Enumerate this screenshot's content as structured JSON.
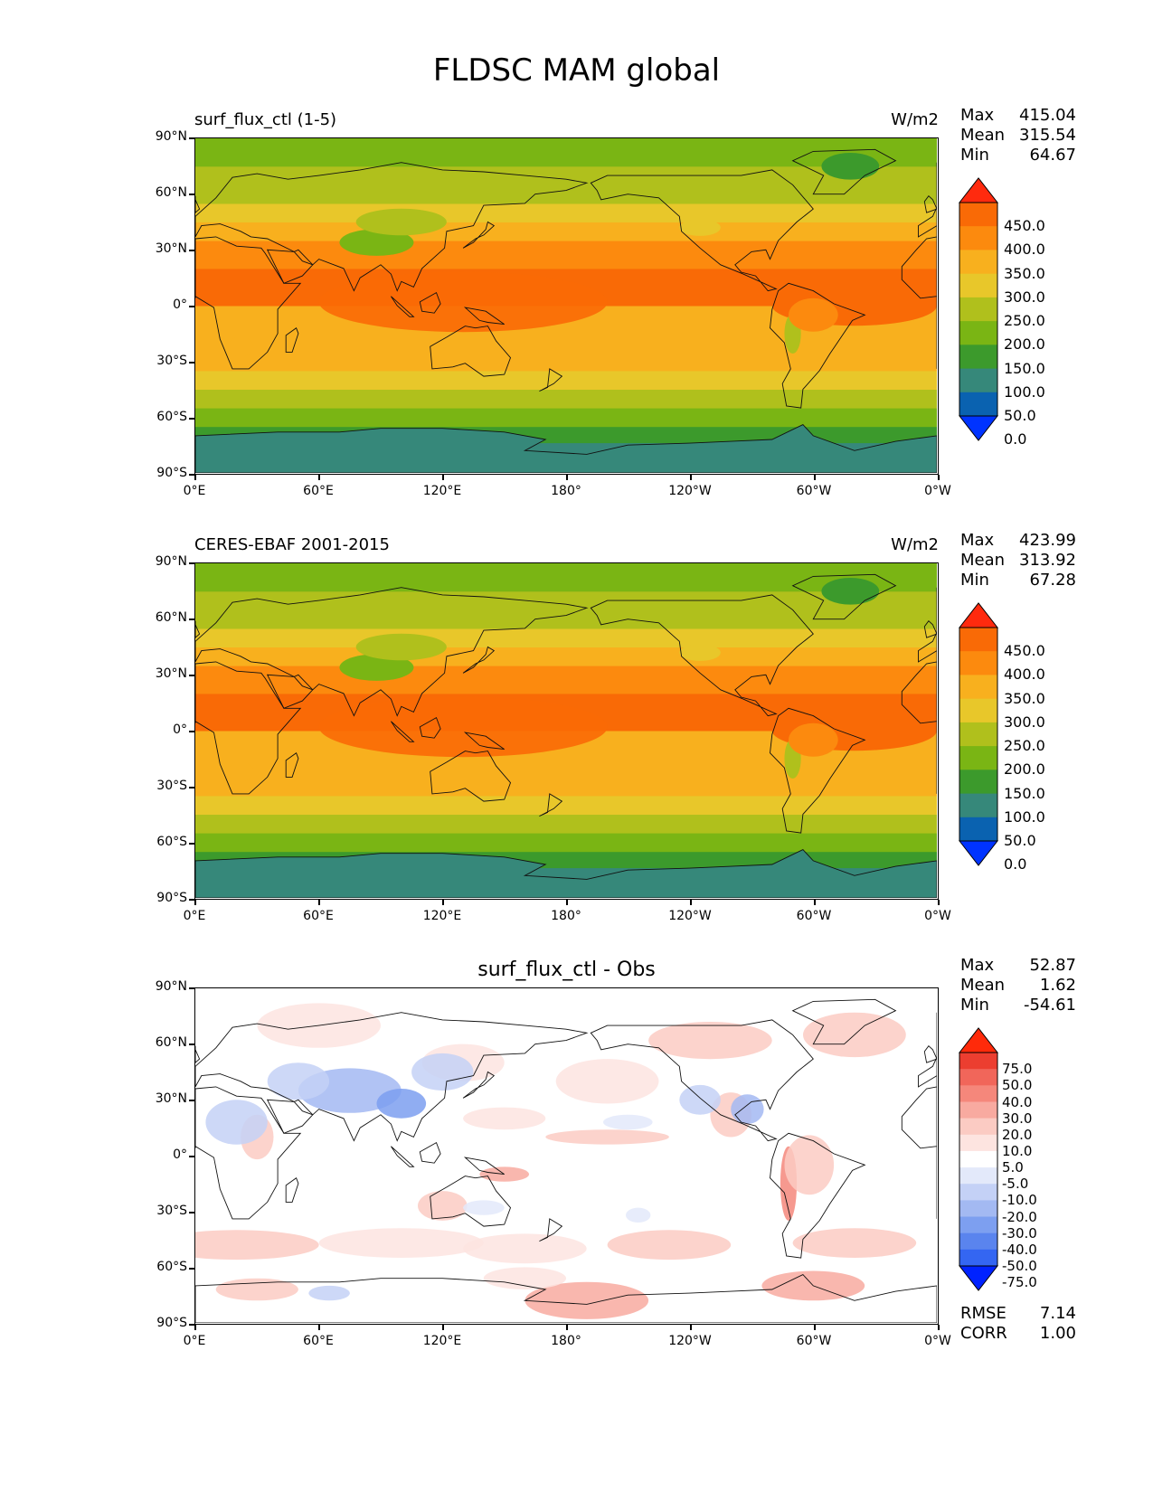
{
  "figure_title": "FLDSC MAM global",
  "x_ticks": [
    "0°E",
    "60°E",
    "120°E",
    "180°",
    "120°W",
    "60°W",
    "0°W"
  ],
  "y_ticks": [
    "90°N",
    "60°N",
    "30°N",
    "0°",
    "30°S",
    "60°S",
    "90°S"
  ],
  "panels": [
    {
      "title": "surf_flux_ctl (1-5)",
      "units": "W/m2",
      "stats": {
        "max_label": "Max",
        "max": "415.04",
        "mean_label": "Mean",
        "mean": "315.54",
        "min_label": "Min",
        "min": "64.67"
      },
      "colorbar_levels": [
        "450.0",
        "400.0",
        "350.0",
        "300.0",
        "250.0",
        "200.0",
        "150.0",
        "100.0",
        "50.0",
        "0.0"
      ]
    },
    {
      "title": "CERES-EBAF 2001-2015",
      "units": "W/m2",
      "stats": {
        "max_label": "Max",
        "max": "423.99",
        "mean_label": "Mean",
        "mean": "313.92",
        "min_label": "Min",
        "min": "67.28"
      },
      "colorbar_levels": [
        "450.0",
        "400.0",
        "350.0",
        "300.0",
        "250.0",
        "200.0",
        "150.0",
        "100.0",
        "50.0",
        "0.0"
      ]
    },
    {
      "title": "surf_flux_ctl - Obs",
      "stats": {
        "max_label": "Max",
        "max": "52.87",
        "mean_label": "Mean",
        "mean": "1.62",
        "min_label": "Min",
        "min": "-54.61"
      },
      "colorbar_levels": [
        "75.0",
        "50.0",
        "40.0",
        "30.0",
        "20.0",
        "10.0",
        "5.0",
        "-5.0",
        "-10.0",
        "-20.0",
        "-30.0",
        "-40.0",
        "-50.0",
        "-75.0"
      ],
      "metrics": {
        "rmse_label": "RMSE",
        "rmse": "7.14",
        "corr_label": "CORR",
        "corr": "1.00"
      }
    }
  ],
  "colors": {
    "flux_scale": [
      "#0033ff",
      "#0a62b0",
      "#36887a",
      "#3c9a2c",
      "#7ab514",
      "#b0c01c",
      "#e8c72a",
      "#f8b01e",
      "#fc8a0e",
      "#f96a06",
      "#ff2a0e"
    ],
    "diff_scale": [
      "#0022ff",
      "#3466f2",
      "#5a84ee",
      "#7d9ff0",
      "#a3b9f2",
      "#c4d1f6",
      "#e3e9fa",
      "#ffffff",
      "#fde4e0",
      "#fbcbc3",
      "#f8aaa0",
      "#f5877b",
      "#f1665a",
      "#ec3e30",
      "#ff2a0a"
    ]
  },
  "chart_data": [
    {
      "type": "heatmap",
      "title": "surf_flux_ctl (1-5)",
      "variable": "FLDSC",
      "season": "MAM",
      "units": "W/m2",
      "xlim": [
        0,
        360
      ],
      "ylim": [
        -90,
        90
      ],
      "levels": [
        0,
        50,
        100,
        150,
        200,
        250,
        300,
        350,
        400,
        450
      ],
      "zonal_band_values": {
        "lat": [
          -90,
          -75,
          -65,
          -55,
          -45,
          -35,
          -20,
          0,
          20,
          35,
          45,
          55,
          65,
          75,
          90
        ],
        "value": [
          120,
          135,
          195,
          230,
          265,
          300,
          345,
          405,
          365,
          315,
          280,
          240,
          200,
          175,
          150
        ]
      },
      "stats": {
        "max": 415.04,
        "mean": 315.54,
        "min": 64.67
      }
    },
    {
      "type": "heatmap",
      "title": "CERES-EBAF 2001-2015",
      "variable": "FLDSC",
      "season": "MAM",
      "units": "W/m2",
      "xlim": [
        0,
        360
      ],
      "ylim": [
        -90,
        90
      ],
      "levels": [
        0,
        50,
        100,
        150,
        200,
        250,
        300,
        350,
        400,
        450
      ],
      "zonal_band_values": {
        "lat": [
          -90,
          -75,
          -65,
          -55,
          -45,
          -35,
          -20,
          0,
          20,
          35,
          45,
          55,
          65,
          75,
          90
        ],
        "value": [
          118,
          135,
          195,
          230,
          265,
          300,
          345,
          410,
          365,
          315,
          280,
          240,
          200,
          175,
          150
        ]
      },
      "stats": {
        "max": 423.99,
        "mean": 313.92,
        "min": 67.28
      }
    },
    {
      "type": "heatmap",
      "title": "surf_flux_ctl - Obs",
      "xlim": [
        0,
        360
      ],
      "ylim": [
        -90,
        90
      ],
      "levels": [
        -75,
        -50,
        -40,
        -30,
        -20,
        -10,
        -5,
        5,
        10,
        20,
        30,
        40,
        50,
        75
      ],
      "stats": {
        "max": 52.87,
        "mean": 1.62,
        "min": -54.61
      },
      "rmse": 7.14,
      "corr": 1.0
    }
  ]
}
